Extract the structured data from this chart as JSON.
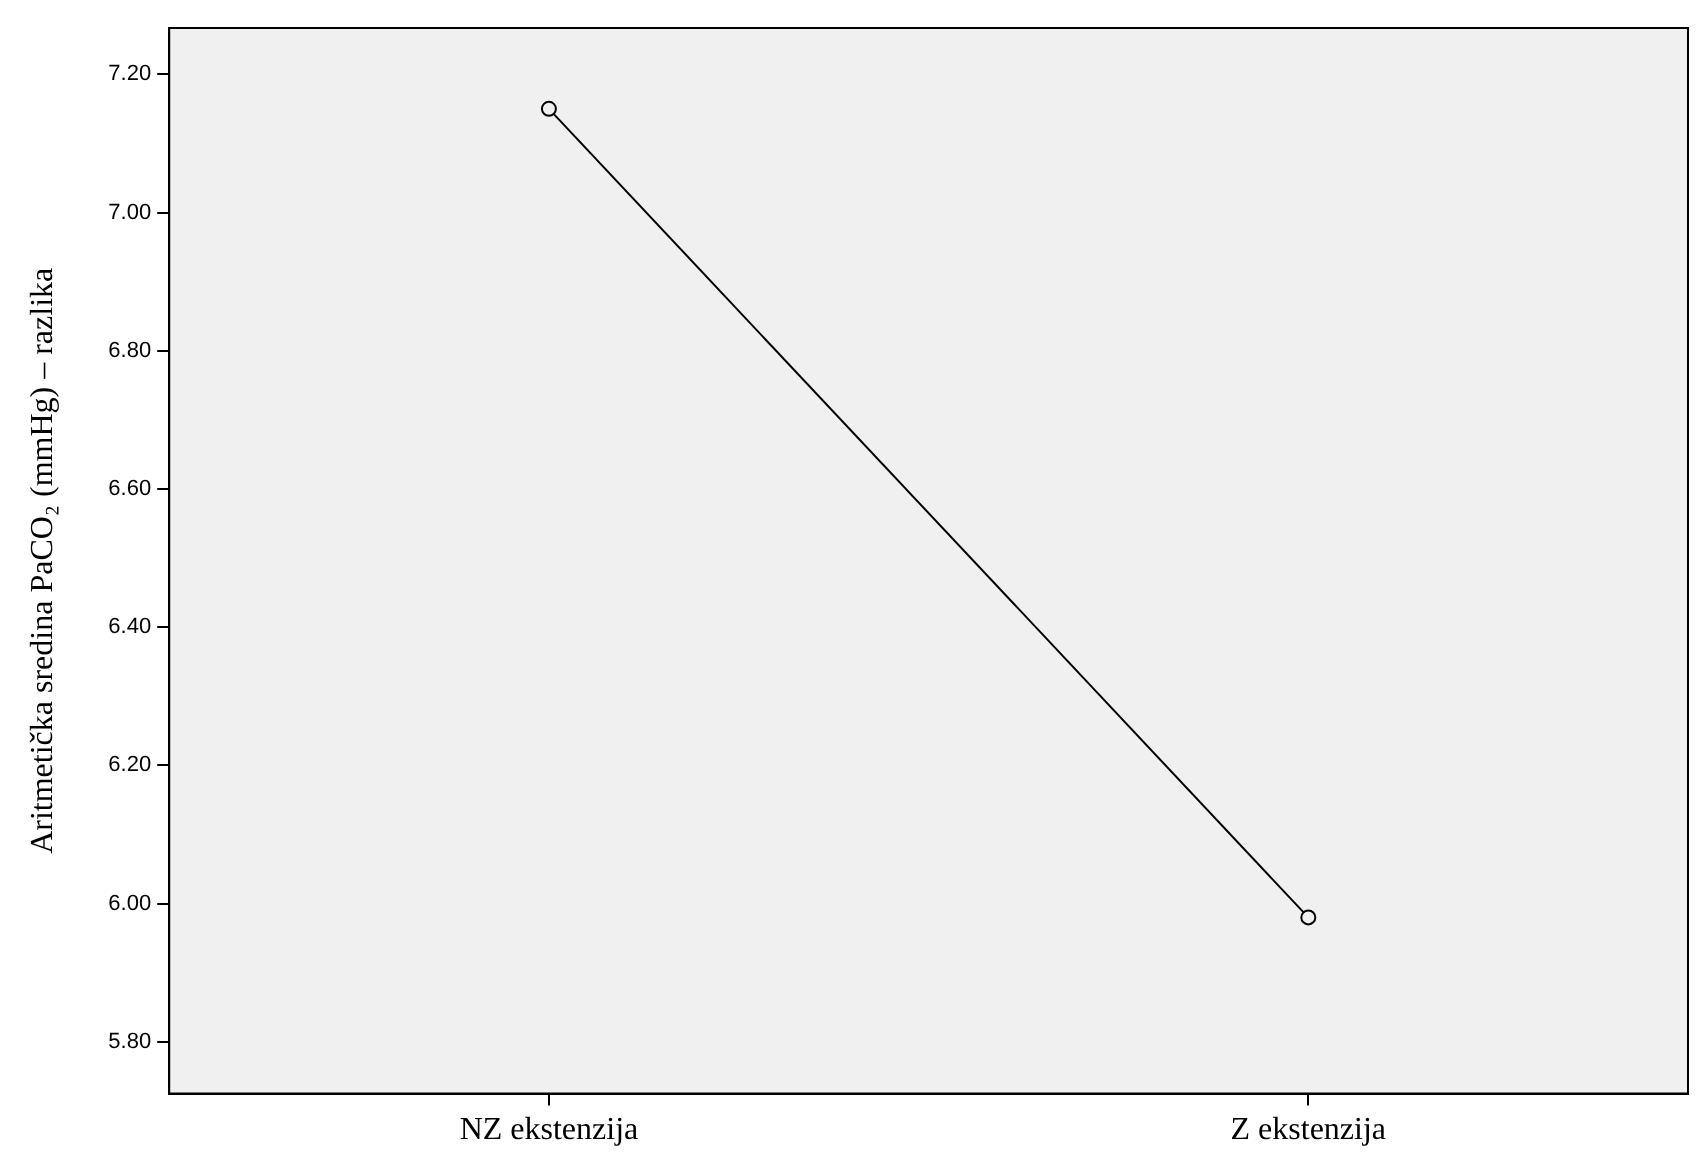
{
  "chart_data": {
    "type": "line",
    "ylabel": "Aritmetička sredina PaCO₂ (mmHg) – razlika",
    "categories": [
      "NZ ekstenzija",
      "Z ekstenzija"
    ],
    "series": [
      {
        "color": "#000000",
        "values": [
          7.15,
          5.98
        ]
      }
    ],
    "ylim": [
      5.725,
      7.267
    ],
    "yticks": [
      {
        "value": 5.8,
        "label": "5.80"
      },
      {
        "value": 6.0,
        "label": "6.00"
      },
      {
        "value": 6.2,
        "label": "6.20"
      },
      {
        "value": 6.4,
        "label": "6.40"
      },
      {
        "value": 6.6,
        "label": "6.60"
      },
      {
        "value": 6.8,
        "label": "6.80"
      },
      {
        "value": 7.0,
        "label": "7.00"
      },
      {
        "value": 7.2,
        "label": "7.20"
      }
    ],
    "grid": false,
    "legend": false,
    "marker": "circle",
    "line_style": "solid"
  }
}
